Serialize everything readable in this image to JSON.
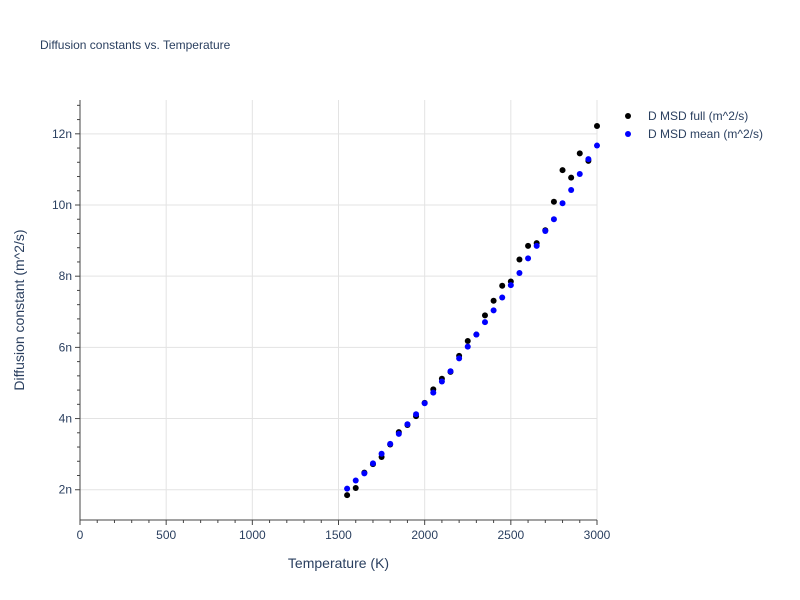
{
  "chart_data": {
    "type": "scatter",
    "title": "Diffusion constants vs. Temperature",
    "xlabel": "Temperature (K)",
    "ylabel": "Diffusion constant (m^2/s)",
    "xlim": [
      0,
      3000
    ],
    "ylim": [
      1.15e-09,
      1.295e-08
    ],
    "x_ticks": [
      0,
      500,
      1000,
      1500,
      2000,
      2500,
      3000
    ],
    "x_tick_labels": [
      "0",
      "500",
      "1000",
      "1500",
      "2000",
      "2500",
      "3000"
    ],
    "y_ticks": [
      2e-09,
      4e-09,
      6e-09,
      8e-09,
      1e-08,
      1.2e-08
    ],
    "y_tick_labels": [
      "2n",
      "4n",
      "6n",
      "8n",
      "10n",
      "12n"
    ],
    "grid": true,
    "legend_position": "top-right-outside",
    "x": [
      1550,
      1600,
      1650,
      1700,
      1750,
      1800,
      1850,
      1900,
      1950,
      2000,
      2050,
      2100,
      2150,
      2200,
      2250,
      2300,
      2350,
      2400,
      2450,
      2500,
      2550,
      2600,
      2650,
      2700,
      2750,
      2800,
      2850,
      2900,
      2950,
      3000
    ],
    "series": [
      {
        "name": "D MSD full (m^2/s)",
        "color": "#000000",
        "values": [
          1.85e-09,
          2.05e-09,
          2.48e-09,
          2.72e-09,
          2.92e-09,
          3.27e-09,
          3.62e-09,
          3.82e-09,
          4.07e-09,
          4.44e-09,
          4.82e-09,
          5.12e-09,
          5.31e-09,
          5.76e-09,
          6.18e-09,
          6.36e-09,
          6.9e-09,
          7.31e-09,
          7.73e-09,
          7.85e-09,
          8.47e-09,
          8.85e-09,
          8.93e-09,
          9.29e-09,
          1.009e-08,
          1.098e-08,
          1.077e-08,
          1.145e-08,
          1.124e-08,
          1.222e-08
        ]
      },
      {
        "name": "D MSD mean (m^2/s)",
        "color": "#0000ff",
        "values": [
          2.03e-09,
          2.26e-09,
          2.46e-09,
          2.74e-09,
          3.01e-09,
          3.29e-09,
          3.57e-09,
          3.84e-09,
          4.12e-09,
          4.43e-09,
          4.73e-09,
          5.04e-09,
          5.33e-09,
          5.69e-09,
          6.02e-09,
          6.36e-09,
          6.71e-09,
          7.04e-09,
          7.4e-09,
          7.75e-09,
          8.09e-09,
          8.5e-09,
          8.85e-09,
          9.27e-09,
          9.6e-09,
          1.005e-08,
          1.042e-08,
          1.087e-08,
          1.129e-08,
          1.167e-08
        ]
      }
    ]
  }
}
